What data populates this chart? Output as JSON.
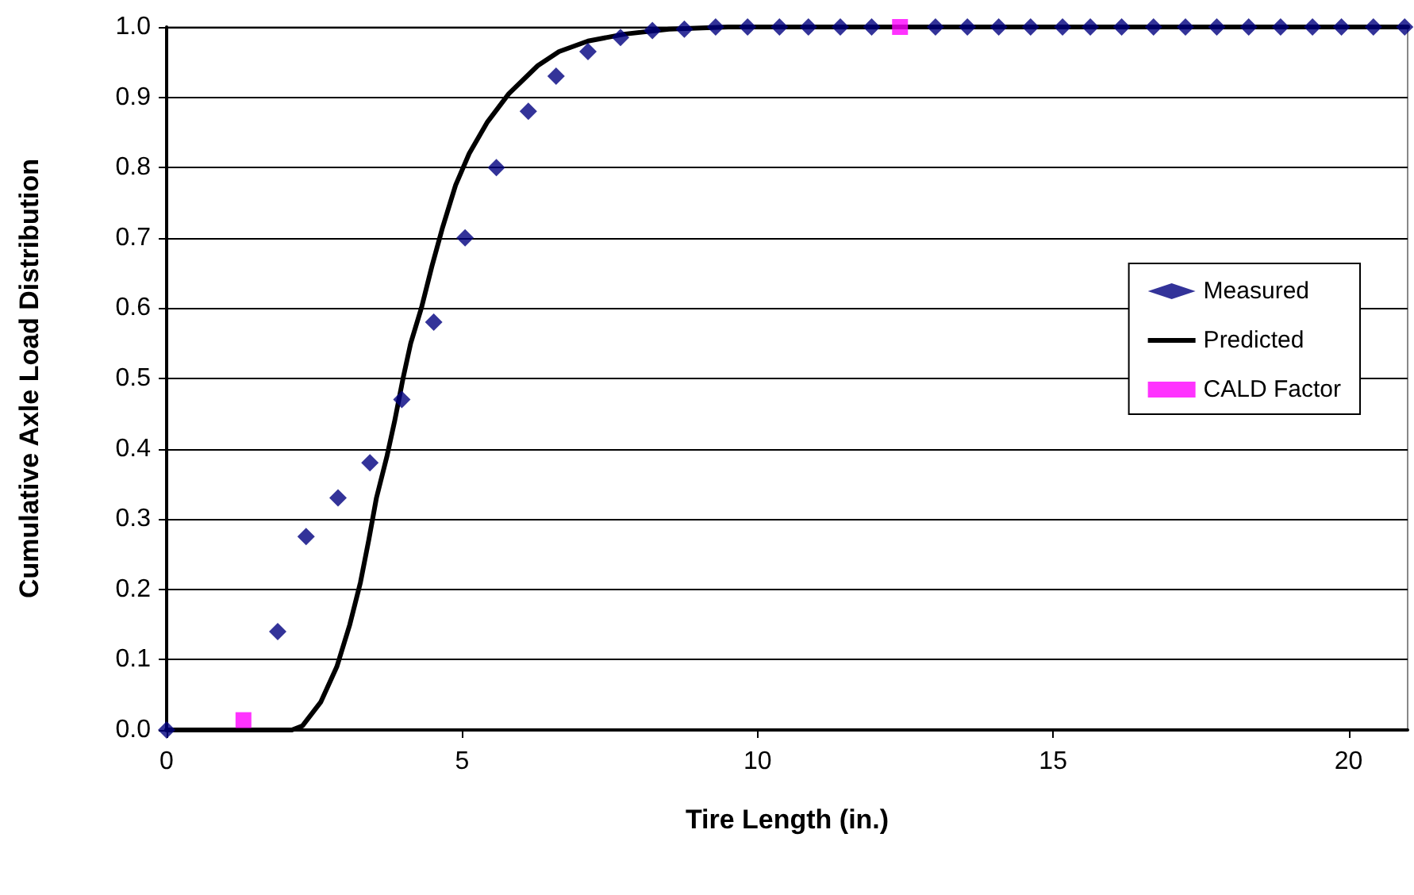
{
  "chart_data": {
    "type": "scatter",
    "xlabel": "Tire Length (in.)",
    "ylabel": "Cumulative Axle Load Distribution",
    "xlim": [
      0,
      21
    ],
    "xticks": [
      0,
      5,
      10,
      15,
      20
    ],
    "ylim": [
      0,
      1
    ],
    "yticks": [
      {
        "value": 0,
        "label": "0.0"
      },
      {
        "value": 0.1,
        "label": "0.1"
      },
      {
        "value": 0.2,
        "label": "0.2"
      },
      {
        "value": 0.3,
        "label": "0.3"
      },
      {
        "value": 0.4,
        "label": "0.4"
      },
      {
        "value": 0.5,
        "label": "0.5"
      },
      {
        "value": 0.6,
        "label": "0.6"
      },
      {
        "value": 0.7,
        "label": "0.7"
      },
      {
        "value": 0.8,
        "label": "0.8"
      },
      {
        "value": 0.9,
        "label": "0.9"
      },
      {
        "value": 1,
        "label": "1.0"
      }
    ],
    "grid": "y",
    "legend": "right",
    "series": [
      {
        "name": "Measured",
        "marker": "diamond",
        "color": "#000080",
        "x": [
          0,
          1.88,
          2.36,
          2.9,
          3.44,
          3.98,
          4.52,
          5.05,
          5.58,
          6.12,
          6.59,
          7.13,
          7.68,
          8.22,
          8.76,
          9.29,
          9.83,
          10.37,
          10.86,
          11.4,
          11.93,
          13.01,
          13.55,
          14.08,
          14.62,
          15.16,
          15.63,
          16.16,
          16.7,
          17.24,
          17.77,
          18.31,
          18.85,
          19.39,
          19.88,
          20.42,
          20.95
        ],
        "values": [
          0,
          0.14,
          0.275,
          0.33,
          0.38,
          0.47,
          0.58,
          0.7,
          0.8,
          0.88,
          0.93,
          0.965,
          0.985,
          0.995,
          0.997,
          1,
          1,
          1,
          1,
          1,
          1,
          1,
          1,
          1,
          1,
          1,
          1,
          1,
          1,
          1,
          1,
          1,
          1,
          1,
          1,
          1,
          1
        ]
      },
      {
        "name": "Predicted",
        "type": "line",
        "marker": "none",
        "line_style": "solid",
        "color": "#000000",
        "x": [
          0,
          2.12,
          2.3,
          2.61,
          2.88,
          3.1,
          3.28,
          3.42,
          3.55,
          3.73,
          3.86,
          4,
          4.13,
          4.31,
          4.49,
          4.67,
          4.89,
          5.12,
          5.43,
          5.79,
          6.28,
          6.64,
          7.13,
          7.76,
          8.5,
          9.5,
          21
        ],
        "values": [
          0,
          0,
          0.006,
          0.04,
          0.09,
          0.15,
          0.21,
          0.27,
          0.33,
          0.39,
          0.44,
          0.5,
          0.55,
          0.6,
          0.66,
          0.715,
          0.775,
          0.82,
          0.865,
          0.905,
          0.945,
          0.965,
          0.98,
          0.99,
          0.997,
          1,
          1
        ]
      },
      {
        "name": "CALD Factor",
        "marker": "square",
        "color": "#ff00ff",
        "x": [
          1.3,
          12.41
        ],
        "values": [
          0.014,
          1
        ]
      }
    ]
  }
}
